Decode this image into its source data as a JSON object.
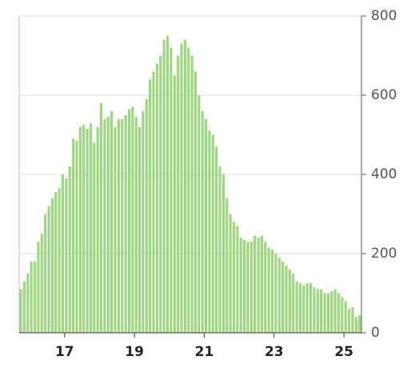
{
  "chart_data": {
    "type": "histogram",
    "bins": [
      15.7,
      15.8,
      15.9,
      16.0,
      16.1,
      16.2,
      16.3,
      16.4,
      16.5,
      16.6,
      16.7,
      16.8,
      16.9,
      17.0,
      17.1,
      17.2,
      17.3,
      17.4,
      17.5,
      17.6,
      17.7,
      17.8,
      17.9,
      18.0,
      18.1,
      18.2,
      18.3,
      18.4,
      18.5,
      18.6,
      18.7,
      18.8,
      18.9,
      19.0,
      19.1,
      19.2,
      19.3,
      19.4,
      19.5,
      19.6,
      19.7,
      19.8,
      19.9,
      20.0,
      20.1,
      20.2,
      20.3,
      20.4,
      20.5,
      20.6,
      20.7,
      20.8,
      20.9,
      21.0,
      21.1,
      21.2,
      21.3,
      21.4,
      21.5,
      21.6,
      21.7,
      21.8,
      21.9,
      22.0,
      22.1,
      22.2,
      22.3,
      22.4,
      22.5,
      22.6,
      22.7,
      22.8,
      22.9,
      23.0,
      23.1,
      23.2,
      23.3,
      23.4,
      23.5,
      23.6,
      23.7,
      23.8,
      23.9,
      24.0,
      24.1,
      24.2,
      24.3,
      24.4,
      24.5,
      24.6,
      24.7,
      24.8,
      24.9,
      25.0,
      25.1,
      25.2,
      25.3,
      25.4,
      25.5
    ],
    "values": [
      110,
      130,
      150,
      180,
      180,
      230,
      250,
      300,
      320,
      340,
      355,
      365,
      400,
      390,
      420,
      490,
      485,
      520,
      525,
      515,
      530,
      480,
      520,
      580,
      540,
      545,
      560,
      520,
      540,
      540,
      550,
      565,
      570,
      545,
      520,
      560,
      590,
      640,
      660,
      680,
      700,
      740,
      750,
      720,
      650,
      700,
      730,
      740,
      720,
      700,
      660,
      600,
      560,
      540,
      510,
      500,
      470,
      420,
      400,
      340,
      300,
      280,
      270,
      240,
      235,
      230,
      230,
      245,
      240,
      245,
      230,
      215,
      210,
      200,
      190,
      180,
      170,
      160,
      150,
      130,
      125,
      120,
      125,
      125,
      115,
      110,
      110,
      100,
      100,
      105,
      110,
      100,
      90,
      80,
      60,
      65,
      40,
      45
    ],
    "color": "#9ed67f",
    "xlim": [
      15.7,
      25.5
    ],
    "xticks": [
      17,
      19,
      21,
      23,
      25
    ],
    "ylim": [
      0,
      800
    ],
    "yticks": [
      0,
      200,
      400,
      600,
      800
    ],
    "grid": true
  }
}
